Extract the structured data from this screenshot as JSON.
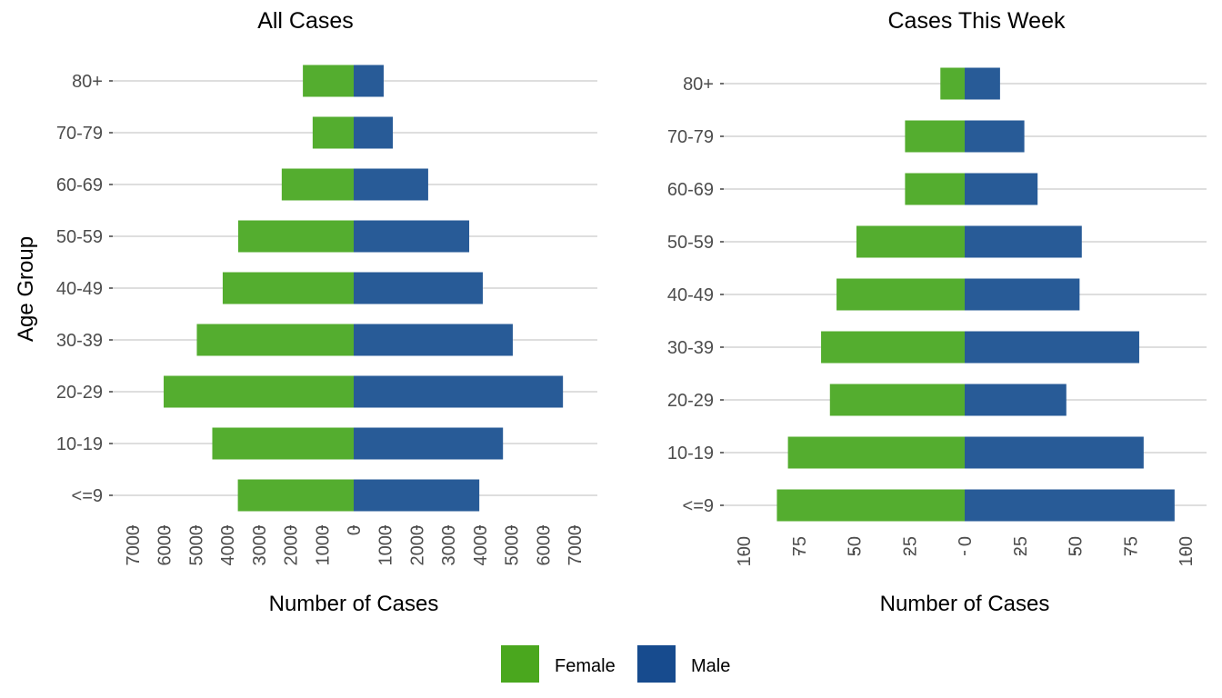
{
  "chart_data": [
    {
      "type": "bar",
      "orientation": "horizontal-population-pyramid",
      "title": "All Cases",
      "xlabel": "Number of Cases",
      "ylabel": "Age Group",
      "categories": [
        "<=9",
        "10-19",
        "20-29",
        "30-39",
        "40-49",
        "50-59",
        "60-69",
        "70-79",
        "80+"
      ],
      "series": [
        {
          "name": "Female",
          "side": "left",
          "values": [
            3670,
            4480,
            6020,
            4970,
            4150,
            3660,
            2280,
            1300,
            1610
          ]
        },
        {
          "name": "Male",
          "side": "right",
          "values": [
            3980,
            4730,
            6630,
            5040,
            4090,
            3660,
            2360,
            1240,
            950
          ]
        }
      ],
      "xlim": [
        -7000,
        7000
      ],
      "xticks": [
        -7000,
        -6000,
        -5000,
        -4000,
        -3000,
        -2000,
        -1000,
        0,
        1000,
        2000,
        3000,
        4000,
        5000,
        6000,
        7000
      ],
      "xtick_labels": [
        "7000",
        "6000",
        "5000",
        "4000",
        "3000",
        "2000",
        "1000",
        "0",
        "1000",
        "2000",
        "3000",
        "4000",
        "5000",
        "6000",
        "7000"
      ],
      "grid": "horizontal major"
    },
    {
      "type": "bar",
      "orientation": "horizontal-population-pyramid",
      "title": "Cases This Week",
      "xlabel": "Number of Cases",
      "ylabel": "",
      "categories": [
        "<=9",
        "10-19",
        "20-29",
        "30-39",
        "40-49",
        "50-59",
        "60-69",
        "70-79",
        "80+"
      ],
      "series": [
        {
          "name": "Female",
          "side": "left",
          "values": [
            85,
            80,
            61,
            65,
            58,
            49,
            27,
            27,
            11
          ]
        },
        {
          "name": "Male",
          "side": "right",
          "values": [
            95,
            81,
            46,
            79,
            52,
            53,
            33,
            27,
            16
          ]
        }
      ],
      "xlim": [
        -100,
        100
      ],
      "xticks": [
        -100,
        -75,
        -50,
        -25,
        0,
        25,
        50,
        75,
        100
      ],
      "xtick_labels": [
        "100",
        "75",
        "50",
        "25",
        "0",
        "25",
        "50",
        "75",
        "100"
      ],
      "grid": "horizontal major"
    }
  ],
  "legend": {
    "position": "bottom",
    "items": [
      {
        "label": "Female",
        "color": "#4aa71e"
      },
      {
        "label": "Male",
        "color": "#174b8e"
      }
    ]
  },
  "colors": {
    "female_bar": "#54ad2f",
    "male_bar": "#285b97",
    "grid": "#d3d3d3",
    "tick": "#333333"
  }
}
